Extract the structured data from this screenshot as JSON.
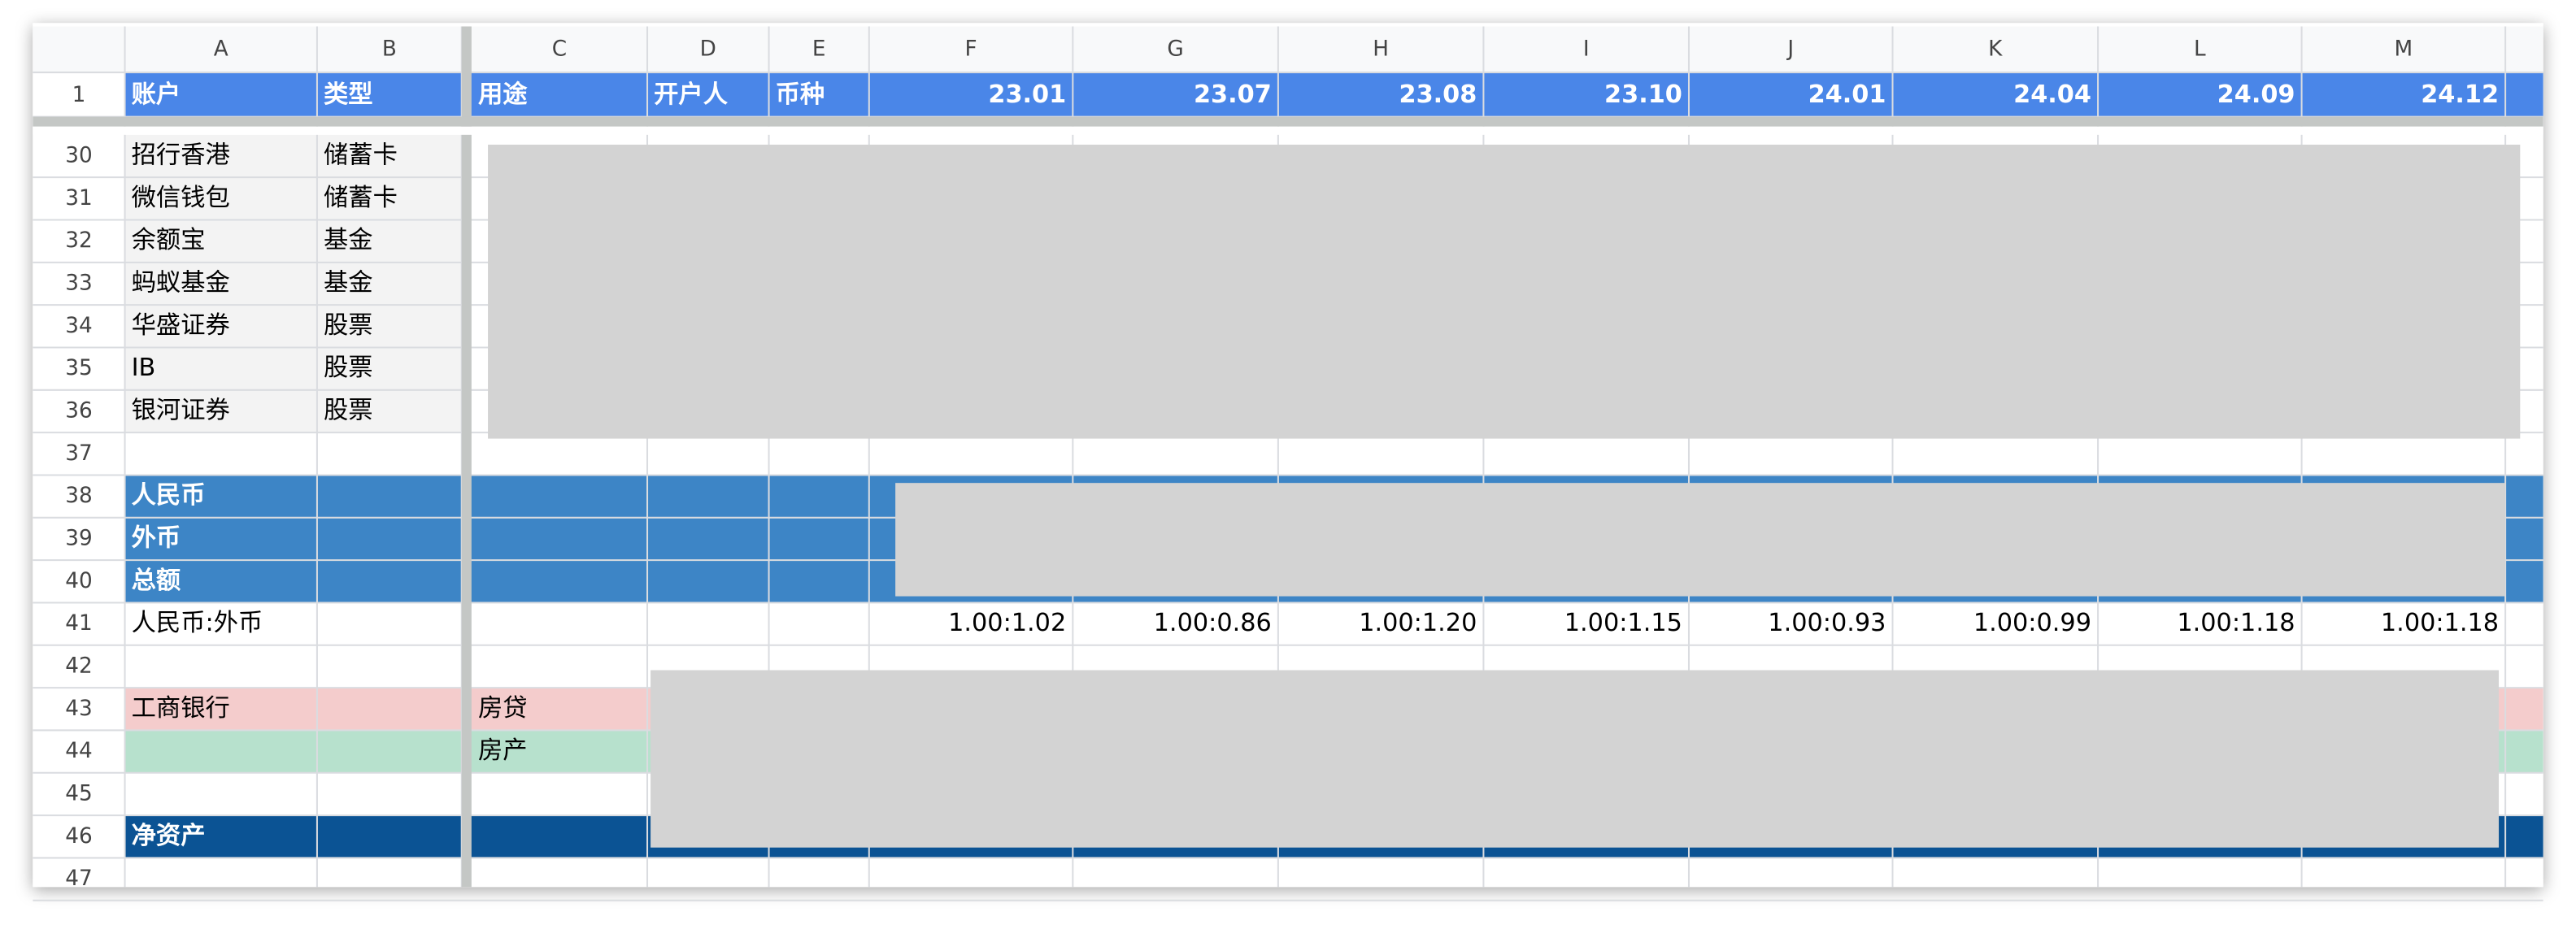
{
  "columns": [
    "A",
    "B",
    "C",
    "D",
    "E",
    "F",
    "G",
    "H",
    "I",
    "J",
    "K",
    "L",
    "M"
  ],
  "header_row": {
    "number": "1",
    "cells": {
      "A": "账户",
      "B": "类型",
      "C": "用途",
      "D": "开户人",
      "E": "币种",
      "F": "23.01",
      "G": "23.07",
      "H": "23.08",
      "I": "23.10",
      "J": "24.01",
      "K": "24.04",
      "L": "24.09",
      "M": "24.12"
    }
  },
  "rows": [
    {
      "number": "30",
      "cells": {
        "A": "招行香港",
        "B": "储蓄卡"
      }
    },
    {
      "number": "31",
      "cells": {
        "A": "微信钱包",
        "B": "储蓄卡"
      }
    },
    {
      "number": "32",
      "cells": {
        "A": "余额宝",
        "B": "基金"
      }
    },
    {
      "number": "33",
      "cells": {
        "A": "蚂蚁基金",
        "B": "基金"
      }
    },
    {
      "number": "34",
      "cells": {
        "A": "华盛证券",
        "B": "股票"
      }
    },
    {
      "number": "35",
      "cells": {
        "A": "IB",
        "B": "股票"
      }
    },
    {
      "number": "36",
      "cells": {
        "A": "银河证券",
        "B": "股票"
      }
    },
    {
      "number": "37"
    },
    {
      "number": "38",
      "cells": {
        "A": "人民币"
      }
    },
    {
      "number": "39",
      "cells": {
        "A": "外币"
      }
    },
    {
      "number": "40",
      "cells": {
        "A": "总额"
      }
    },
    {
      "number": "41",
      "cells": {
        "A": "人民币:外币",
        "F": "1.00:1.02",
        "G": "1.00:0.86",
        "H": "1.00:1.20",
        "I": "1.00:1.15",
        "J": "1.00:0.93",
        "K": "1.00:0.99",
        "L": "1.00:1.18",
        "M": "1.00:1.18"
      }
    },
    {
      "number": "42"
    },
    {
      "number": "43",
      "cells": {
        "A": "工商银行",
        "C": "房贷"
      }
    },
    {
      "number": "44",
      "cells": {
        "C": "房产"
      }
    },
    {
      "number": "45"
    },
    {
      "number": "46",
      "cells": {
        "A": "净资产"
      }
    },
    {
      "number": "47"
    }
  ]
}
